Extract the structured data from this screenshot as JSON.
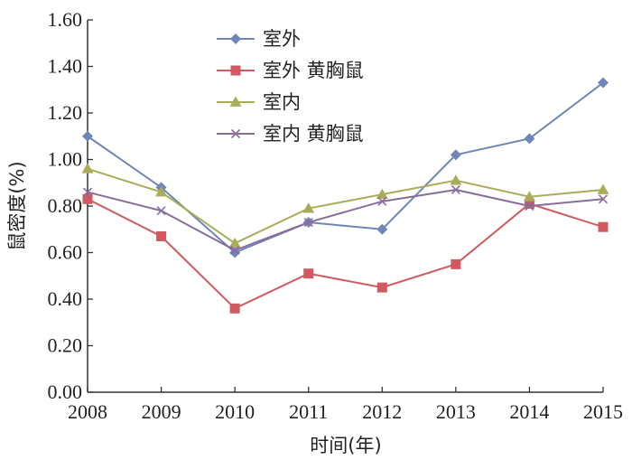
{
  "chart_data": {
    "type": "line",
    "title": "",
    "xlabel": "时间(年)",
    "ylabel": "鼠密度(%)",
    "x": [
      "2008",
      "2009",
      "2010",
      "2011",
      "2012",
      "2013",
      "2014",
      "2015"
    ],
    "ylim": [
      0,
      1.6
    ],
    "y_ticks": [
      "0.00",
      "0.20",
      "0.40",
      "0.60",
      "0.80",
      "1.00",
      "1.20",
      "1.40",
      "1.60"
    ],
    "grid": false,
    "legend_position": "top-center",
    "series": [
      {
        "name": "室外",
        "marker": "diamond",
        "color": "#6f86b6",
        "values": [
          1.1,
          0.88,
          0.6,
          0.73,
          0.7,
          1.02,
          1.09,
          1.33
        ]
      },
      {
        "name": "室外 黄胸鼠",
        "marker": "square",
        "color": "#d05a5f",
        "values": [
          0.83,
          0.67,
          0.36,
          0.51,
          0.45,
          0.55,
          0.81,
          0.71
        ]
      },
      {
        "name": "室内",
        "marker": "triangle",
        "color": "#a9ad5a",
        "values": [
          0.96,
          0.86,
          0.64,
          0.79,
          0.85,
          0.91,
          0.84,
          0.87
        ]
      },
      {
        "name": "室内 黄胸鼠",
        "marker": "x",
        "color": "#8a6c9c",
        "values": [
          0.86,
          0.78,
          0.61,
          0.73,
          0.82,
          0.87,
          0.8,
          0.83
        ]
      }
    ]
  }
}
